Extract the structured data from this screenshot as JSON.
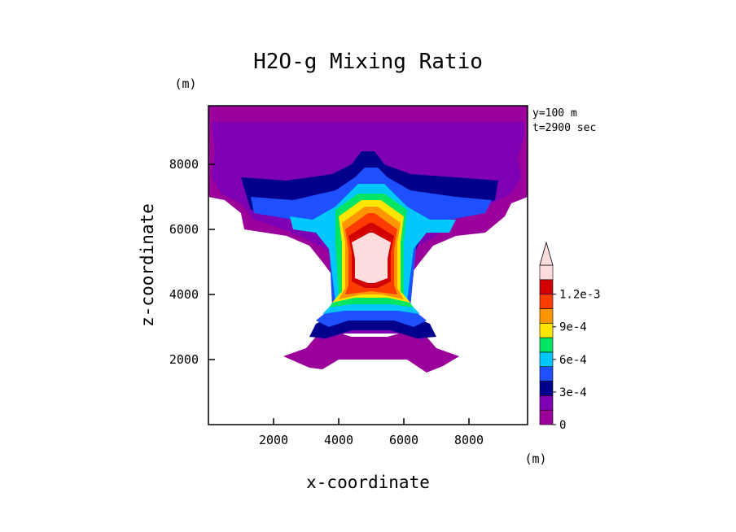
{
  "chart_data": {
    "type": "contour",
    "title": "H2O-g Mixing Ratio",
    "xlabel": "x-coordinate",
    "ylabel": "z-coordinate",
    "x_unit": "(m)",
    "y_unit": "(m)",
    "annotations": [
      "y=100 m",
      "t=2900 sec"
    ],
    "xlim": [
      0,
      9800
    ],
    "ylim": [
      0,
      9800
    ],
    "x_ticks": [
      2000,
      4000,
      6000,
      8000
    ],
    "y_ticks": [
      2000,
      4000,
      6000,
      8000
    ],
    "x_tick_labels": [
      "2000",
      "4000",
      "6000",
      "8000"
    ],
    "y_tick_labels": [
      "2000",
      "4000",
      "6000",
      "8000"
    ],
    "colorbar": {
      "levels": [
        0,
        0.00015,
        0.0003,
        0.00045,
        0.0006,
        0.00075,
        0.0009,
        0.00105,
        0.0012
      ],
      "labels": [
        "0",
        "3e-4",
        "6e-4",
        "9e-4",
        "1.2e-3"
      ],
      "label_values": [
        0,
        0.0003,
        0.0006,
        0.0009,
        0.0012
      ],
      "colors": [
        "#9b009b",
        "#7f00b4",
        "#00008c",
        "#1e50ff",
        "#00c8ff",
        "#00e664",
        "#ffe600",
        "#ff9600",
        "#ff3c00",
        "#d20000",
        "#fcdcdc"
      ],
      "extend": "max"
    },
    "contour_bands": [
      {
        "level": 7e-05,
        "color": "#9b009b",
        "region": "upper layer 7000-9800 m plus plume wings and lower lobes"
      },
      {
        "level": 0.00015,
        "color": "#7f00b4",
        "region": "6600-8900 m"
      },
      {
        "level": 0.00025,
        "color": "#00008c",
        "region": "6100-7600 m anvil"
      },
      {
        "level": 0.00035,
        "color": "#1e50ff",
        "region": "plume core and side jets"
      },
      {
        "level": 0.00045,
        "color": "#00c8ff",
        "region": "updraft"
      },
      {
        "level": 0.0006,
        "color": "#00e664",
        "region": "updraft"
      },
      {
        "level": 0.00075,
        "color": "#ffe600",
        "region": "updraft"
      },
      {
        "level": 0.0009,
        "color": "#ff9600",
        "region": "updraft"
      },
      {
        "level": 0.00105,
        "color": "#ff3c00",
        "region": "updraft"
      },
      {
        "level": 0.0012,
        "color": "#d20000",
        "region": "core"
      },
      {
        "level": 0.00125,
        "color": "#fcdcdc",
        "region": "central core 4000-5800 m"
      }
    ],
    "grid": false,
    "legend": "right"
  }
}
